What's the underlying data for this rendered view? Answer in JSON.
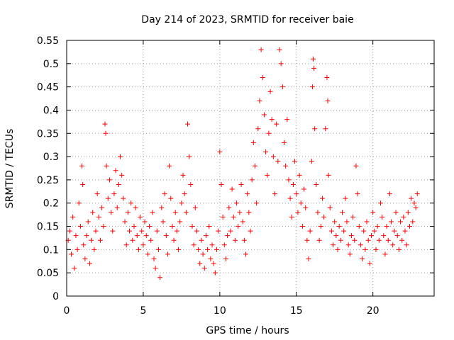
{
  "chart_data": {
    "type": "scatter",
    "title": "Day 214 of 2023, SRMTID for receiver baie",
    "xlabel": "GPS time / hours",
    "ylabel": "SRMTID / TECUs",
    "xlim": [
      0,
      24
    ],
    "ylim": [
      0,
      0.55
    ],
    "x_ticks": [
      0,
      5,
      10,
      15,
      20
    ],
    "x_tick_labels": [
      "0",
      "5",
      "10",
      "15",
      "20"
    ],
    "y_ticks": [
      0,
      0.05,
      0.1,
      0.15,
      0.2,
      0.25,
      0.3,
      0.35,
      0.4,
      0.45,
      0.5,
      0.55
    ],
    "y_tick_labels": [
      "0",
      "0.05",
      "0.1",
      "0.15",
      "0.2",
      "0.25",
      "0.3",
      "0.35",
      "0.4",
      "0.45",
      "0.5",
      "0.55"
    ],
    "grid": true,
    "marker": "plus",
    "color": "#ff0000",
    "series": [
      {
        "name": "SRMTID",
        "points": [
          [
            0.1,
            0.12
          ],
          [
            0.2,
            0.14
          ],
          [
            0.3,
            0.09
          ],
          [
            0.4,
            0.17
          ],
          [
            0.5,
            0.06
          ],
          [
            0.6,
            0.13
          ],
          [
            0.7,
            0.1
          ],
          [
            0.8,
            0.2
          ],
          [
            0.9,
            0.15
          ],
          [
            1.0,
            0.28
          ],
          [
            1.05,
            0.24
          ],
          [
            1.1,
            0.11
          ],
          [
            1.2,
            0.08
          ],
          [
            1.3,
            0.13
          ],
          [
            1.4,
            0.16
          ],
          [
            1.5,
            0.07
          ],
          [
            1.6,
            0.12
          ],
          [
            1.7,
            0.18
          ],
          [
            1.8,
            0.1
          ],
          [
            1.9,
            0.14
          ],
          [
            2.0,
            0.22
          ],
          [
            2.1,
            0.17
          ],
          [
            2.2,
            0.12
          ],
          [
            2.3,
            0.19
          ],
          [
            2.4,
            0.15
          ],
          [
            2.5,
            0.37
          ],
          [
            2.55,
            0.35
          ],
          [
            2.6,
            0.28
          ],
          [
            2.7,
            0.21
          ],
          [
            2.8,
            0.25
          ],
          [
            2.9,
            0.18
          ],
          [
            3.0,
            0.14
          ],
          [
            3.1,
            0.22
          ],
          [
            3.2,
            0.27
          ],
          [
            3.3,
            0.19
          ],
          [
            3.4,
            0.24
          ],
          [
            3.5,
            0.3
          ],
          [
            3.6,
            0.26
          ],
          [
            3.7,
            0.21
          ],
          [
            3.8,
            0.16
          ],
          [
            3.9,
            0.11
          ],
          [
            4.0,
            0.18
          ],
          [
            4.1,
            0.14
          ],
          [
            4.2,
            0.2
          ],
          [
            4.3,
            0.12
          ],
          [
            4.4,
            0.15
          ],
          [
            4.5,
            0.19
          ],
          [
            4.6,
            0.13
          ],
          [
            4.7,
            0.1
          ],
          [
            4.8,
            0.17
          ],
          [
            4.9,
            0.14
          ],
          [
            5.0,
            0.11
          ],
          [
            5.1,
            0.16
          ],
          [
            5.2,
            0.13
          ],
          [
            5.3,
            0.09
          ],
          [
            5.4,
            0.15
          ],
          [
            5.5,
            0.12
          ],
          [
            5.6,
            0.18
          ],
          [
            5.7,
            0.08
          ],
          [
            5.8,
            0.06
          ],
          [
            5.9,
            0.14
          ],
          [
            6.0,
            0.1
          ],
          [
            6.1,
            0.04
          ],
          [
            6.2,
            0.19
          ],
          [
            6.3,
            0.16
          ],
          [
            6.4,
            0.22
          ],
          [
            6.5,
            0.13
          ],
          [
            6.6,
            0.09
          ],
          [
            6.7,
            0.28
          ],
          [
            6.8,
            0.21
          ],
          [
            6.9,
            0.15
          ],
          [
            7.0,
            0.12
          ],
          [
            7.1,
            0.18
          ],
          [
            7.2,
            0.14
          ],
          [
            7.3,
            0.1
          ],
          [
            7.4,
            0.16
          ],
          [
            7.5,
            0.2
          ],
          [
            7.6,
            0.26
          ],
          [
            7.7,
            0.22
          ],
          [
            7.8,
            0.18
          ],
          [
            7.9,
            0.37
          ],
          [
            8.0,
            0.3
          ],
          [
            8.1,
            0.24
          ],
          [
            8.2,
            0.15
          ],
          [
            8.3,
            0.11
          ],
          [
            8.4,
            0.19
          ],
          [
            8.5,
            0.14
          ],
          [
            8.6,
            0.1
          ],
          [
            8.7,
            0.07
          ],
          [
            8.8,
            0.12
          ],
          [
            8.9,
            0.09
          ],
          [
            9.0,
            0.06
          ],
          [
            9.1,
            0.13
          ],
          [
            9.2,
            0.1
          ],
          [
            9.3,
            0.15
          ],
          [
            9.4,
            0.08
          ],
          [
            9.5,
            0.11
          ],
          [
            9.6,
            0.07
          ],
          [
            9.7,
            0.05
          ],
          [
            9.8,
            0.1
          ],
          [
            9.9,
            0.14
          ],
          [
            10.0,
            0.31
          ],
          [
            10.1,
            0.24
          ],
          [
            10.2,
            0.17
          ],
          [
            10.3,
            0.11
          ],
          [
            10.4,
            0.08
          ],
          [
            10.5,
            0.13
          ],
          [
            10.6,
            0.19
          ],
          [
            10.7,
            0.14
          ],
          [
            10.8,
            0.23
          ],
          [
            10.9,
            0.17
          ],
          [
            11.0,
            0.12
          ],
          [
            11.1,
            0.2
          ],
          [
            11.2,
            0.15
          ],
          [
            11.3,
            0.18
          ],
          [
            11.4,
            0.24
          ],
          [
            11.5,
            0.16
          ],
          [
            11.6,
            0.12
          ],
          [
            11.7,
            0.09
          ],
          [
            11.8,
            0.22
          ],
          [
            11.9,
            0.18
          ],
          [
            12.0,
            0.14
          ],
          [
            12.1,
            0.25
          ],
          [
            12.2,
            0.33
          ],
          [
            12.3,
            0.28
          ],
          [
            12.4,
            0.2
          ],
          [
            12.5,
            0.36
          ],
          [
            12.6,
            0.42
          ],
          [
            12.7,
            0.53
          ],
          [
            12.8,
            0.47
          ],
          [
            12.9,
            0.39
          ],
          [
            13.0,
            0.31
          ],
          [
            13.1,
            0.26
          ],
          [
            13.2,
            0.35
          ],
          [
            13.3,
            0.44
          ],
          [
            13.4,
            0.38
          ],
          [
            13.5,
            0.3
          ],
          [
            13.6,
            0.22
          ],
          [
            13.7,
            0.37
          ],
          [
            13.8,
            0.29
          ],
          [
            13.9,
            0.53
          ],
          [
            14.0,
            0.5
          ],
          [
            14.1,
            0.45
          ],
          [
            14.2,
            0.33
          ],
          [
            14.3,
            0.28
          ],
          [
            14.4,
            0.38
          ],
          [
            14.5,
            0.25
          ],
          [
            14.6,
            0.21
          ],
          [
            14.7,
            0.17
          ],
          [
            14.8,
            0.24
          ],
          [
            14.9,
            0.29
          ],
          [
            15.0,
            0.22
          ],
          [
            15.1,
            0.18
          ],
          [
            15.2,
            0.26
          ],
          [
            15.3,
            0.2
          ],
          [
            15.4,
            0.15
          ],
          [
            15.5,
            0.23
          ],
          [
            15.6,
            0.19
          ],
          [
            15.7,
            0.12
          ],
          [
            15.8,
            0.08
          ],
          [
            15.9,
            0.14
          ],
          [
            16.0,
            0.29
          ],
          [
            16.05,
            0.45
          ],
          [
            16.1,
            0.51
          ],
          [
            16.15,
            0.49
          ],
          [
            16.2,
            0.36
          ],
          [
            16.3,
            0.24
          ],
          [
            16.4,
            0.18
          ],
          [
            16.5,
            0.12
          ],
          [
            16.6,
            0.15
          ],
          [
            16.7,
            0.21
          ],
          [
            16.8,
            0.17
          ],
          [
            16.9,
            0.36
          ],
          [
            17.0,
            0.47
          ],
          [
            17.05,
            0.42
          ],
          [
            17.1,
            0.26
          ],
          [
            17.2,
            0.19
          ],
          [
            17.3,
            0.14
          ],
          [
            17.4,
            0.11
          ],
          [
            17.5,
            0.16
          ],
          [
            17.6,
            0.13
          ],
          [
            17.7,
            0.1
          ],
          [
            17.8,
            0.15
          ],
          [
            17.9,
            0.12
          ],
          [
            18.0,
            0.18
          ],
          [
            18.1,
            0.14
          ],
          [
            18.2,
            0.21
          ],
          [
            18.3,
            0.16
          ],
          [
            18.4,
            0.11
          ],
          [
            18.5,
            0.09
          ],
          [
            18.6,
            0.13
          ],
          [
            18.7,
            0.17
          ],
          [
            18.8,
            0.12
          ],
          [
            18.9,
            0.28
          ],
          [
            19.0,
            0.22
          ],
          [
            19.1,
            0.15
          ],
          [
            19.2,
            0.11
          ],
          [
            19.3,
            0.08
          ],
          [
            19.4,
            0.14
          ],
          [
            19.5,
            0.1
          ],
          [
            19.6,
            0.16
          ],
          [
            19.7,
            0.12
          ],
          [
            19.8,
            0.07
          ],
          [
            19.9,
            0.13
          ],
          [
            20.0,
            0.18
          ],
          [
            20.1,
            0.14
          ],
          [
            20.2,
            0.1
          ],
          [
            20.3,
            0.15
          ],
          [
            20.4,
            0.12
          ],
          [
            20.5,
            0.2
          ],
          [
            20.6,
            0.17
          ],
          [
            20.7,
            0.13
          ],
          [
            20.8,
            0.09
          ],
          [
            20.9,
            0.15
          ],
          [
            21.0,
            0.12
          ],
          [
            21.1,
            0.22
          ],
          [
            21.2,
            0.16
          ],
          [
            21.3,
            0.11
          ],
          [
            21.4,
            0.14
          ],
          [
            21.5,
            0.18
          ],
          [
            21.6,
            0.13
          ],
          [
            21.7,
            0.1
          ],
          [
            21.8,
            0.16
          ],
          [
            21.9,
            0.12
          ],
          [
            22.0,
            0.17
          ],
          [
            22.1,
            0.14
          ],
          [
            22.2,
            0.11
          ],
          [
            22.3,
            0.18
          ],
          [
            22.4,
            0.15
          ],
          [
            22.5,
            0.21
          ],
          [
            22.6,
            0.16
          ],
          [
            22.7,
            0.2
          ],
          [
            22.8,
            0.19
          ],
          [
            22.9,
            0.22
          ]
        ]
      }
    ]
  }
}
